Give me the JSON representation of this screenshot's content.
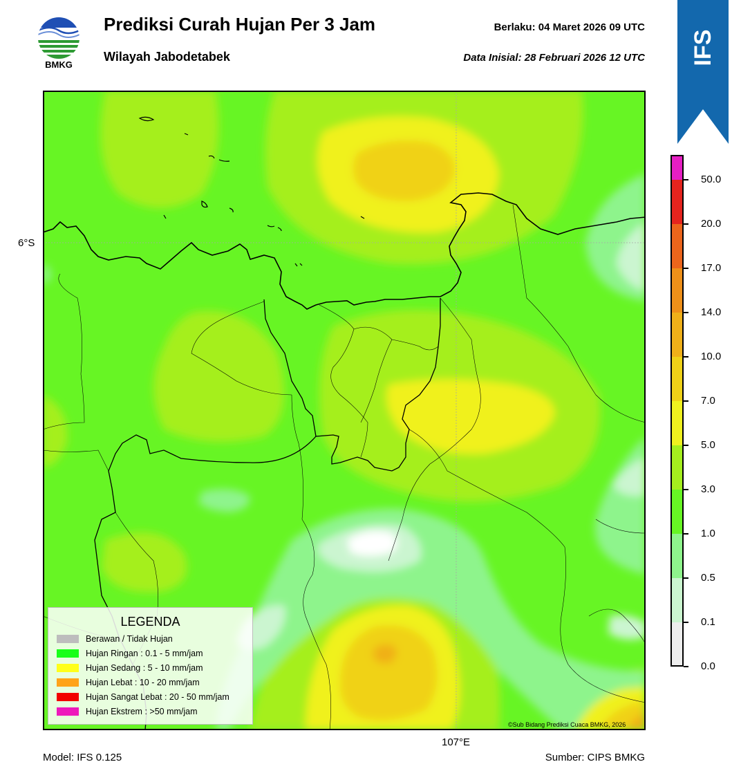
{
  "header": {
    "logo_text": "BMKG",
    "title": "Prediksi Curah Hujan Per 3 Jam",
    "subtitle": "Wilayah Jabodetabek",
    "valid_label": "Berlaku:  04 Maret 2026 09 UTC",
    "initial_label": "Data Inisial:  28 Februari 2026 12 UTC",
    "model_tab": "IFS"
  },
  "map": {
    "lat_label": "6°S",
    "lon_label": "107°E",
    "copyright": "©Sub Bidang Prediksi Cuaca BMKG, 2026"
  },
  "legend": {
    "title": "LEGENDA",
    "items": [
      {
        "label": "Berawan / Tidak Hujan",
        "color": "#bdbdbd"
      },
      {
        "label": "Hujan Ringan : 0.1 - 5 mm/jam",
        "color": "#19ff19"
      },
      {
        "label": "Hujan Sedang : 5 - 10 mm/jam",
        "color": "#ffff19"
      },
      {
        "label": "Hujan Lebat : 10 - 20 mm/jam",
        "color": "#ffa319"
      },
      {
        "label": "Hujan Sangat Lebat : 20 - 50 mm/jam",
        "color": "#f20000"
      },
      {
        "label": "Hujan Ekstrem : >50 mm/jam",
        "color": "#ee19bb"
      }
    ]
  },
  "colorbar": {
    "labels": [
      "0.0",
      "0.1",
      "0.5",
      "1.0",
      "3.0",
      "5.0",
      "7.0",
      "10.0",
      "14.0",
      "17.0",
      "20.0",
      "50.0"
    ],
    "colors": [
      "#eeeeee",
      "#cbf5d0",
      "#8ef48c",
      "#67f524",
      "#a5ef1e",
      "#f0f11f",
      "#f0d218",
      "#f0b019",
      "#ef9019",
      "#ec651c",
      "#e5241e",
      "#e61fc3"
    ]
  },
  "footer": {
    "model": "Model: IFS 0.125",
    "source": "Sumber: CIPS BMKG"
  }
}
